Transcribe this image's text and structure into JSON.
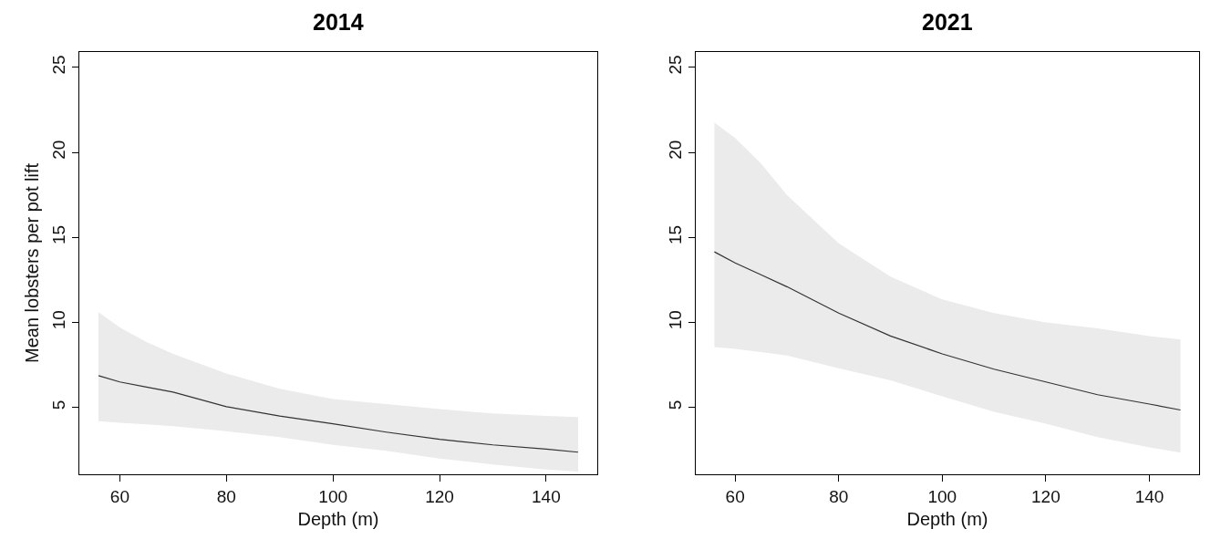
{
  "chart_data": [
    {
      "type": "line",
      "title": "2014",
      "xlabel": "Depth (m)",
      "ylabel": "Mean lobsters per pot lift",
      "xlim": [
        52.4,
        149.6
      ],
      "ylim": [
        1.07,
        25.9
      ],
      "xticks": [
        60,
        80,
        100,
        120,
        140
      ],
      "yticks": [
        5,
        10,
        15,
        20,
        25
      ],
      "marker": "none",
      "line_style": "solid",
      "x": [
        56,
        60,
        65,
        70,
        80,
        90,
        100,
        110,
        120,
        130,
        140,
        146
      ],
      "series": [
        {
          "color": "#333333",
          "values": [
            6.87,
            6.5,
            6.2,
            5.9,
            5.05,
            4.5,
            4.04,
            3.55,
            3.13,
            2.8,
            2.55,
            2.37
          ],
          "lower": [
            4.2,
            4.1,
            4.0,
            3.9,
            3.6,
            3.25,
            2.8,
            2.45,
            2.0,
            1.65,
            1.35,
            1.23
          ],
          "upper": [
            10.6,
            9.7,
            8.85,
            8.15,
            7.0,
            6.1,
            5.5,
            5.2,
            4.9,
            4.65,
            4.5,
            4.43
          ]
        }
      ]
    },
    {
      "type": "line",
      "title": "2021",
      "xlabel": "Depth (m)",
      "xlim": [
        52.4,
        149.6
      ],
      "ylim": [
        1.07,
        25.9
      ],
      "xticks": [
        60,
        80,
        100,
        120,
        140
      ],
      "yticks": [
        5,
        10,
        15,
        20,
        25
      ],
      "marker": "none",
      "line_style": "solid",
      "x": [
        56,
        60,
        65,
        70,
        80,
        90,
        100,
        110,
        120,
        130,
        140,
        146
      ],
      "series": [
        {
          "color": "#333333",
          "values": [
            14.15,
            13.5,
            12.8,
            12.1,
            10.55,
            9.2,
            8.15,
            7.25,
            6.5,
            5.75,
            5.2,
            4.85
          ],
          "lower": [
            8.55,
            8.45,
            8.25,
            8.05,
            7.3,
            6.6,
            5.65,
            4.75,
            4.05,
            3.25,
            2.65,
            2.35
          ],
          "upper": [
            21.75,
            20.85,
            19.35,
            17.5,
            14.65,
            12.7,
            11.35,
            10.55,
            10.0,
            9.65,
            9.2,
            9.0
          ]
        }
      ]
    }
  ]
}
